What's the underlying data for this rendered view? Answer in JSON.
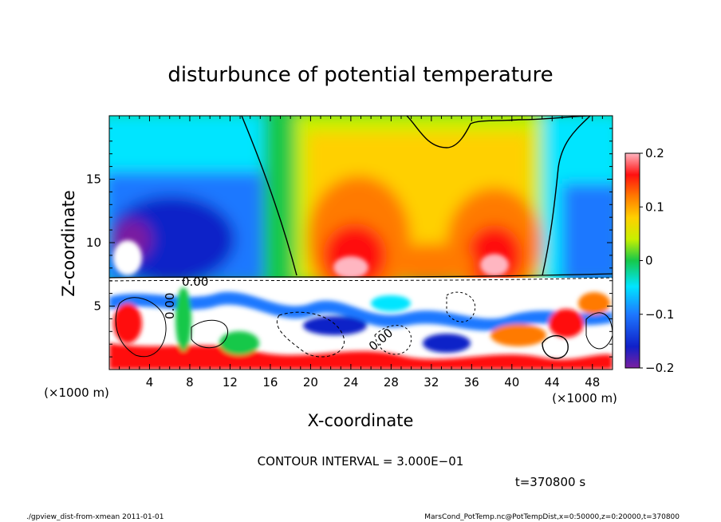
{
  "chart_data": {
    "type": "heatmap",
    "title": "disturbunce of potential temperature",
    "xlabel": "X-coordinate",
    "ylabel": "Z-coordinate",
    "x_unit": "(×1000 m)",
    "y_unit": "(×1000 m)",
    "xlim": [
      0,
      50
    ],
    "ylim": [
      0,
      20
    ],
    "x_ticks": [
      4,
      8,
      12,
      16,
      20,
      24,
      28,
      32,
      36,
      40,
      44,
      48
    ],
    "y_ticks": [
      5,
      10,
      15
    ],
    "colorbar": {
      "min": -0.2,
      "max": 0.2,
      "ticks": [
        "0.2",
        "0.1",
        "0",
        "−0.1",
        "−0.2"
      ],
      "tick_values": [
        0.2,
        0.1,
        0,
        -0.1,
        -0.2
      ]
    },
    "contour_label": "0.00",
    "contour_interval": "CONTOUR INTERVAL = 3.000E−01",
    "time_label": "t=370800 s"
  },
  "footer": {
    "left": "./gpview_dist-from-xmean  2011-01-01",
    "right": "MarsCond_PotTemp.nc@PotTempDist,x=0:50000,z=0:20000,t=370800"
  }
}
